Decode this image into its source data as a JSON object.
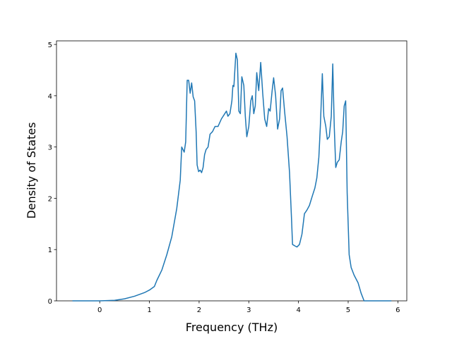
{
  "chart_data": {
    "type": "line",
    "xlabel": "Frequency (THz)",
    "ylabel": "Density of States",
    "xlim": [
      -0.87,
      6.18
    ],
    "ylim": [
      0,
      5.07
    ],
    "xticks": [
      0,
      1,
      2,
      3,
      4,
      5,
      6
    ],
    "yticks": [
      0,
      1,
      2,
      3,
      4,
      5
    ],
    "series": [
      {
        "color": "#1f77b4",
        "x": [
          -0.55,
          0,
          0.3,
          0.5,
          0.7,
          0.9,
          1.0,
          1.1,
          1.15,
          1.25,
          1.35,
          1.45,
          1.55,
          1.62,
          1.65,
          1.7,
          1.73,
          1.76,
          1.79,
          1.82,
          1.85,
          1.88,
          1.91,
          1.94,
          1.96,
          1.99,
          2.02,
          2.05,
          2.08,
          2.11,
          2.14,
          2.18,
          2.22,
          2.27,
          2.32,
          2.38,
          2.45,
          2.55,
          2.58,
          2.62,
          2.66,
          2.68,
          2.7,
          2.74,
          2.77,
          2.8,
          2.83,
          2.86,
          2.9,
          2.93,
          2.96,
          3.0,
          3.04,
          3.07,
          3.1,
          3.13,
          3.16,
          3.2,
          3.24,
          3.28,
          3.32,
          3.36,
          3.4,
          3.43,
          3.47,
          3.5,
          3.54,
          3.58,
          3.62,
          3.65,
          3.68,
          3.72,
          3.77,
          3.82,
          3.86,
          3.88,
          3.93,
          3.97,
          4.02,
          4.07,
          4.12,
          4.17,
          4.22,
          4.28,
          4.33,
          4.37,
          4.41,
          4.44,
          4.48,
          4.51,
          4.55,
          4.58,
          4.62,
          4.66,
          4.69,
          4.72,
          4.75,
          4.78,
          4.82,
          4.86,
          4.89,
          4.92,
          4.95,
          4.98,
          5.02,
          5.06,
          5.12,
          5.2,
          5.26,
          5.32,
          5.87
        ],
        "values": [
          0,
          0,
          0.01,
          0.04,
          0.09,
          0.16,
          0.21,
          0.28,
          0.4,
          0.6,
          0.9,
          1.25,
          1.8,
          2.35,
          3.0,
          2.9,
          3.1,
          4.3,
          4.3,
          4.05,
          4.25,
          3.98,
          3.9,
          3.3,
          2.65,
          2.52,
          2.55,
          2.5,
          2.6,
          2.85,
          2.95,
          3.0,
          3.25,
          3.3,
          3.4,
          3.4,
          3.55,
          3.7,
          3.6,
          3.65,
          3.9,
          4.2,
          4.18,
          4.83,
          4.7,
          3.7,
          3.65,
          4.37,
          4.2,
          3.6,
          3.2,
          3.4,
          3.9,
          4.0,
          3.65,
          3.8,
          4.45,
          4.1,
          4.65,
          4.05,
          3.55,
          3.4,
          3.75,
          3.7,
          4.1,
          4.35,
          4.0,
          3.35,
          3.55,
          4.1,
          4.15,
          3.7,
          3.2,
          2.5,
          1.6,
          1.1,
          1.07,
          1.05,
          1.1,
          1.3,
          1.7,
          1.77,
          1.86,
          2.05,
          2.2,
          2.4,
          2.8,
          3.4,
          4.43,
          3.6,
          3.4,
          3.15,
          3.2,
          3.6,
          4.62,
          3.4,
          2.6,
          2.7,
          2.75,
          3.1,
          3.3,
          3.8,
          3.9,
          2.1,
          0.9,
          0.65,
          0.5,
          0.35,
          0.15,
          0,
          0
        ]
      }
    ]
  }
}
